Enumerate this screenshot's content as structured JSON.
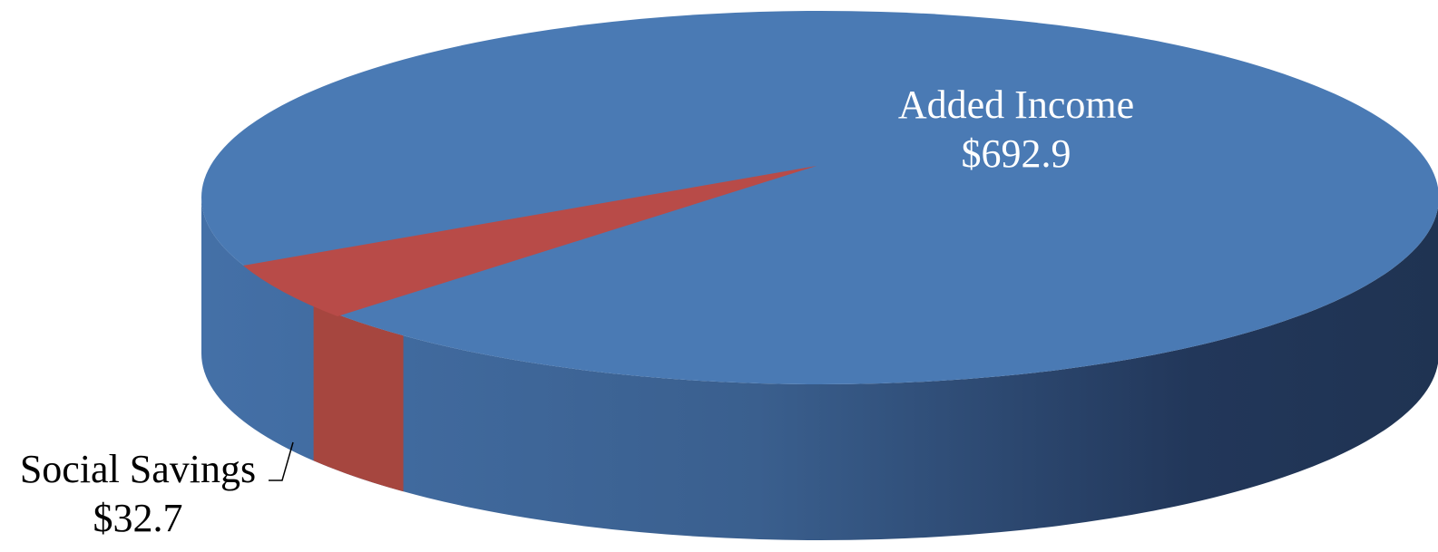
{
  "chart_data": {
    "type": "pie",
    "style": "3d",
    "slices": [
      {
        "label": "Added Income",
        "value_text": "$692.9",
        "value": 692.9,
        "color": "#4a7ab4"
      },
      {
        "label": "Social Savings",
        "value_text": "$32.7",
        "value": 32.7,
        "color": "#b84b48"
      }
    ]
  }
}
